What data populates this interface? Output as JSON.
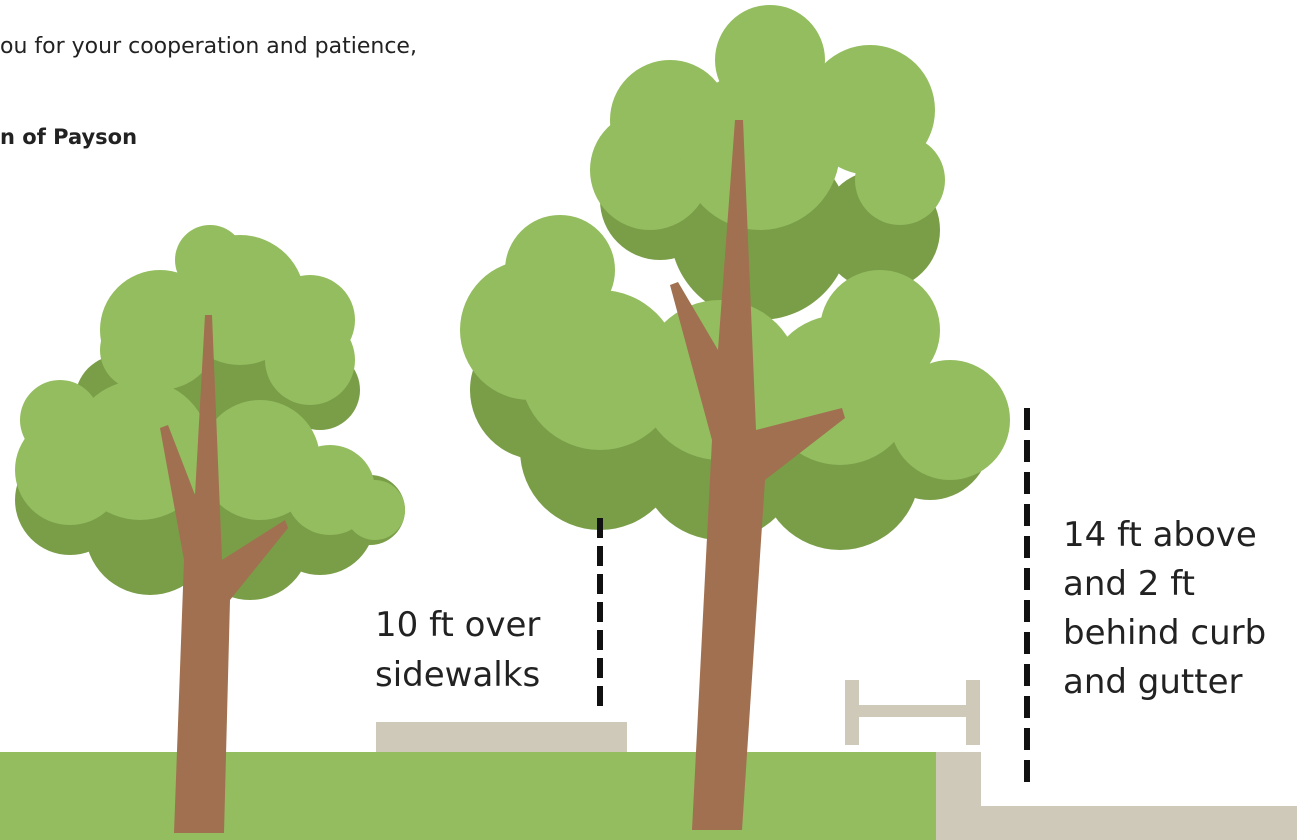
{
  "document": {
    "closing": "ou for your cooperation and patience,",
    "signature": "n of Payson",
    "labels": [
      {
        "lines": [
          "10 ft over",
          "sidewalks"
        ]
      },
      {
        "lines": [
          "14 ft above",
          "and 2 ft",
          "behind curb",
          "and gutter"
        ]
      }
    ]
  }
}
